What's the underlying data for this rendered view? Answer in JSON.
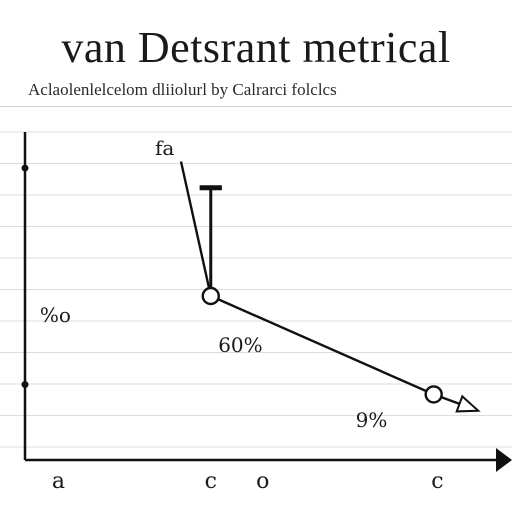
{
  "title": "van Detsrant metrical",
  "subtitle": "Aclaolenlelcelom dliiolurl by Calrarci folclcs",
  "chart_data": {
    "type": "line",
    "series": [
      {
        "points": [
          {
            "x": 4.2,
            "y": 9.1
          },
          {
            "x": 5.0,
            "y": 5.0
          },
          {
            "x": 11.0,
            "y": 2.0
          },
          {
            "x": 12.2,
            "y": 1.5
          }
        ]
      }
    ],
    "markers": [
      {
        "x": 5.0,
        "y": 5.0
      },
      {
        "x": 11.0,
        "y": 2.0
      }
    ],
    "arrow_at_end": true,
    "vertical_tick": {
      "x": 5.0,
      "y_from": 5.0,
      "y_to": 8.3,
      "cap_width": 0.6
    },
    "xlim": [
      0,
      13
    ],
    "ylim": [
      0,
      10
    ],
    "grid": true,
    "annotations": [
      {
        "text": "fa",
        "x": 3.5,
        "y": 9.3
      },
      {
        "text": "%o",
        "x": 0.4,
        "y": 4.2
      },
      {
        "text": "60%",
        "x": 5.2,
        "y": 3.3
      },
      {
        "text": "9%",
        "x": 8.9,
        "y": 1.0
      }
    ],
    "x_tick_labels": [
      {
        "text": "a",
        "x": 0.9
      },
      {
        "text": "c",
        "x": 5.0
      },
      {
        "text": "o",
        "x": 6.4
      },
      {
        "text": "c",
        "x": 11.1
      }
    ],
    "y_tick_marks": [
      8.9,
      2.3
    ]
  }
}
